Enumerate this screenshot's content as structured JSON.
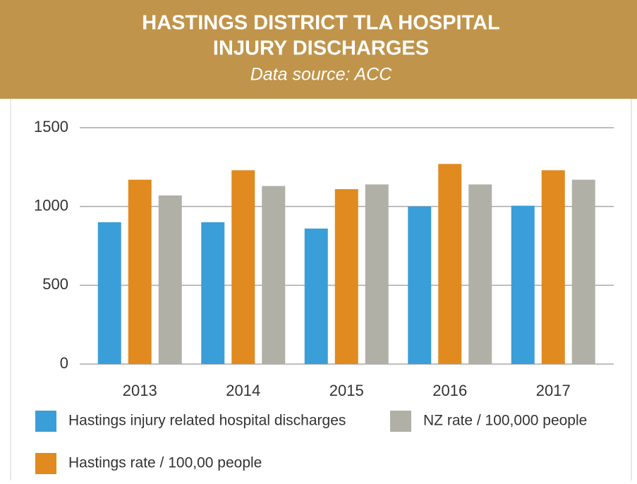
{
  "chart_data": {
    "type": "bar",
    "title": "HASTINGS DISTRICT TLA HOSPITAL",
    "title_line2": "INJURY DISCHARGES",
    "subtitle": "Data source: ACC",
    "categories": [
      "2013",
      "2014",
      "2015",
      "2016",
      "2017"
    ],
    "series": [
      {
        "name": "Hastings injury related hospital discharges",
        "color": "#3a9ed8",
        "values": [
          900,
          900,
          860,
          1000,
          1005
        ]
      },
      {
        "name": "Hastings rate / 100,00 people",
        "color": "#e08a1f",
        "values": [
          1170,
          1230,
          1110,
          1270,
          1230
        ]
      },
      {
        "name": "NZ rate / 100,000 people",
        "color": "#b1b0a6",
        "values": [
          1070,
          1130,
          1140,
          1140,
          1170
        ]
      }
    ],
    "ylim": [
      0,
      1500
    ],
    "yticks": [
      0,
      500,
      1000,
      1500
    ],
    "grid": true
  }
}
